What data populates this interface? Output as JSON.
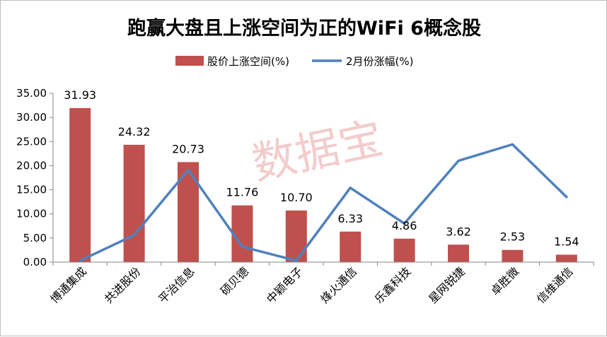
{
  "chart_data": {
    "type": "bar",
    "title": "跑赢大盘且上涨空间为正的WiFi 6概念股",
    "categories": [
      "博通集成",
      "共进股份",
      "平治信息",
      "硕贝德",
      "中颖电子",
      "烽火通信",
      "乐鑫科技",
      "星网锐捷",
      "卓胜微",
      "信维通信"
    ],
    "series": [
      {
        "name": "股价上涨空间(%)",
        "type": "bar",
        "color": "#c0504d",
        "values": [
          31.93,
          24.32,
          20.73,
          11.76,
          10.7,
          6.33,
          4.86,
          3.62,
          2.53,
          1.54
        ],
        "labels": [
          "31.93",
          "24.32",
          "20.73",
          "11.76",
          "10.70",
          "6.33",
          "4.86",
          "3.62",
          "2.53",
          "1.54"
        ]
      },
      {
        "name": "2月份涨幅(%)",
        "type": "line",
        "color": "#4f81bd",
        "values": [
          0.3,
          5.6,
          19.1,
          3.2,
          0.3,
          15.4,
          8.0,
          21.0,
          24.4,
          13.5
        ]
      }
    ],
    "ylim": [
      0,
      35
    ],
    "yticks": [
      "0.00",
      "5.00",
      "10.00",
      "15.00",
      "20.00",
      "25.00",
      "30.00",
      "35.00"
    ],
    "ytick_values": [
      0,
      5,
      10,
      15,
      20,
      25,
      30,
      35
    ],
    "grid": false,
    "legend_position": "top"
  },
  "watermark": "数据宝"
}
